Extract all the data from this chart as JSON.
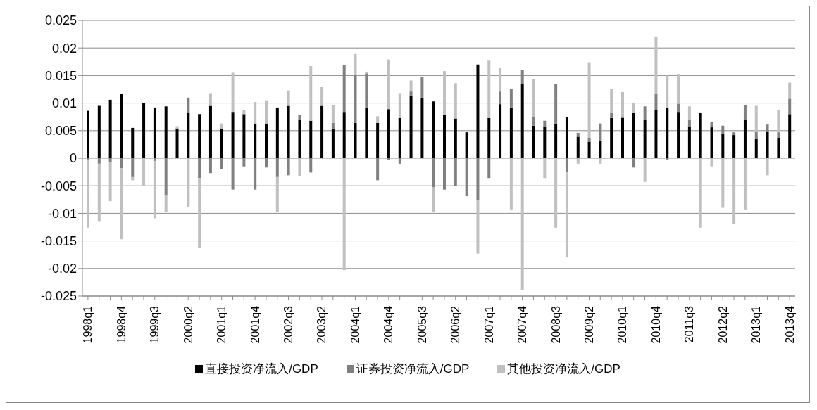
{
  "chart_data": {
    "type": "bar",
    "stacked": true,
    "categories": [
      "1998q1",
      null,
      null,
      "1998q4",
      null,
      null,
      "1999q3",
      null,
      null,
      "2000q2",
      null,
      null,
      "2001q1",
      null,
      null,
      "2001q4",
      null,
      null,
      "2002q3",
      null,
      null,
      "2003q2",
      null,
      null,
      "2004q1",
      null,
      null,
      "2004q4",
      null,
      null,
      "2005q3",
      null,
      null,
      "2006q2",
      null,
      null,
      "2007q1",
      null,
      null,
      "2007q4",
      null,
      null,
      "2008q3",
      null,
      null,
      "2009q2",
      null,
      null,
      "2010q1",
      null,
      null,
      "2010q4",
      null,
      null,
      "2011q3",
      null,
      null,
      "2012q2",
      null,
      null,
      "2013q1",
      null,
      null,
      "2013q4"
    ],
    "series": [
      {
        "name": "直接投资净流入/GDP",
        "color": "#000000",
        "values": [
          0.0086,
          0.0095,
          0.0106,
          0.0117,
          0.0055,
          0.01,
          0.0092,
          0.0094,
          0.0054,
          0.0082,
          0.008,
          0.0095,
          0.0054,
          0.0084,
          0.008,
          0.0063,
          0.0063,
          0.0092,
          0.0095,
          0.007,
          0.0068,
          0.0095,
          0.0054,
          0.0084,
          0.0064,
          0.0092,
          0.0064,
          0.0089,
          0.0073,
          0.0114,
          0.011,
          0.0103,
          0.0078,
          0.0072,
          0.0047,
          0.017,
          0.0073,
          0.0098,
          0.0092,
          0.0134,
          0.0059,
          0.0058,
          0.0063,
          0.0075,
          0.0039,
          0.003,
          0.0032,
          0.0073,
          0.0073,
          0.0082,
          0.007,
          0.0087,
          0.0092,
          0.0084,
          0.0058,
          0.0083,
          0.0056,
          0.0045,
          0.0042,
          0.007,
          0.0035,
          0.0049,
          0.0037,
          0.008
        ]
      },
      {
        "name": "证券投资净流入/GDP",
        "color": "#808080",
        "values": [
          -0.0003,
          -0.001,
          -0.0007,
          -0.0018,
          -0.0033,
          null,
          -0.0005,
          -0.0067,
          null,
          0.0028,
          -0.0036,
          -0.0027,
          -0.002,
          -0.0057,
          -0.0015,
          -0.0057,
          -0.0017,
          -0.0033,
          -0.0031,
          0.0009,
          -0.0026,
          null,
          0.001,
          0.0085,
          0.0087,
          0.0062,
          -0.004,
          -0.0003,
          -0.001,
          0.0007,
          0.0037,
          -0.0053,
          -0.0057,
          -0.005,
          -0.0069,
          -0.0076,
          -0.0036,
          0.0023,
          0.0034,
          0.0026,
          0.0017,
          0.001,
          0.0072,
          -0.0026,
          0.0007,
          0.0007,
          0.0031,
          0.0009,
          0.0003,
          -0.0017,
          0.0024,
          0.003,
          -0.0003,
          0.0015,
          0.0012,
          null,
          0.001,
          0.0014,
          0.0005,
          0.0027,
          0.0014,
          0.0012,
          0.001,
          0.0028
        ]
      },
      {
        "name": "其他投资净流入/GDP",
        "color": "#c0c0c0",
        "values": [
          -0.0123,
          -0.0104,
          -0.0071,
          -0.0129,
          -0.0007,
          -0.005,
          -0.0104,
          -0.0031,
          0.0004,
          -0.0089,
          -0.0127,
          0.0023,
          0.0009,
          0.0071,
          0.0007,
          0.0039,
          0.0042,
          -0.0065,
          0.0028,
          -0.0032,
          0.0099,
          0.0035,
          0.0033,
          -0.0203,
          0.0038,
          0.0003,
          0.0012,
          0.009,
          0.0045,
          0.002,
          null,
          -0.0044,
          0.008,
          0.0064,
          null,
          -0.0097,
          0.0104,
          0.0043,
          -0.0093,
          -0.0239,
          0.0068,
          -0.0036,
          -0.0126,
          -0.0154,
          -0.001,
          0.0137,
          -0.001,
          0.0043,
          0.0044,
          0.0018,
          -0.0043,
          0.0104,
          0.0058,
          0.0054,
          0.0024,
          -0.0126,
          -0.0015,
          -0.009,
          -0.0119,
          -0.0093,
          0.0046,
          -0.0031,
          0.004,
          0.0029
        ]
      }
    ],
    "ylim": [
      -0.025,
      0.025
    ],
    "yticks": [
      -0.025,
      -0.02,
      -0.015,
      -0.01,
      -0.005,
      0,
      0.005,
      0.01,
      0.015,
      0.02,
      0.025
    ],
    "grid": "y",
    "legend": "bottom"
  }
}
